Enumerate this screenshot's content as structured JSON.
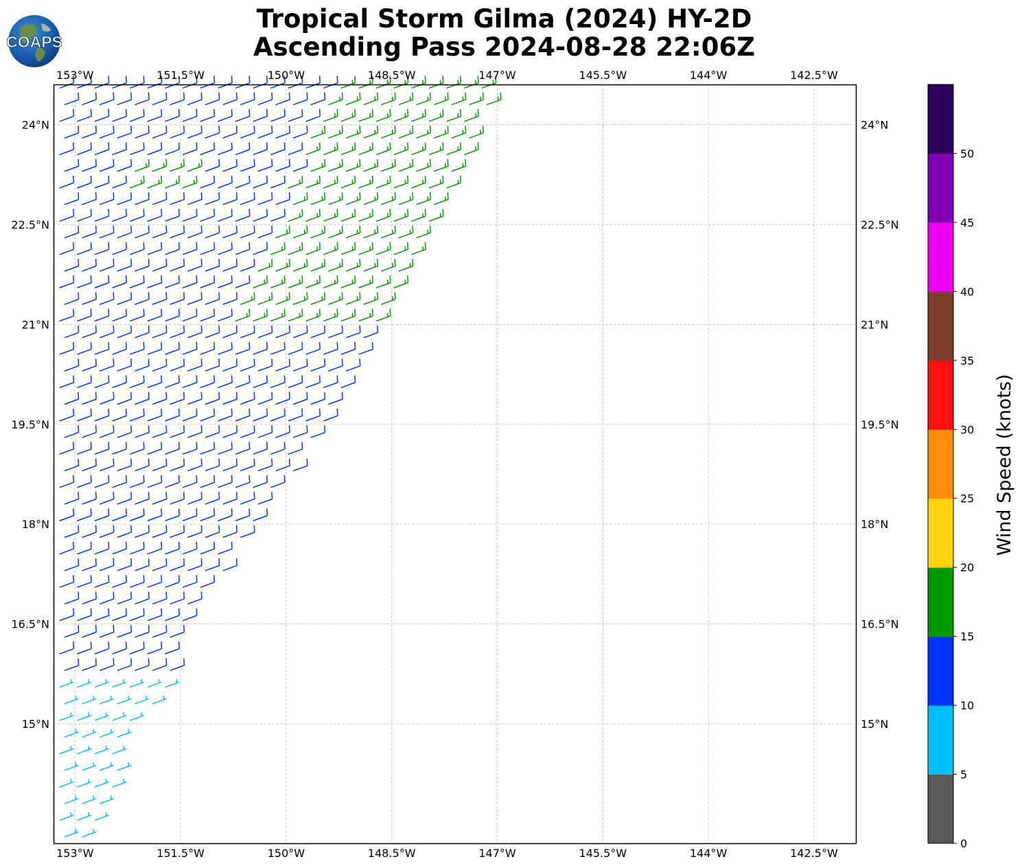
{
  "title": {
    "line1": "Tropical Storm Gilma (2024) HY-2D",
    "line2": "Ascending Pass 2024-08-28 22:06Z"
  },
  "logo": {
    "text": "COAPS",
    "icon": "globe-icon"
  },
  "map": {
    "lon_range": [
      -153.3,
      -141.9
    ],
    "lat_range": [
      13.2,
      24.6
    ],
    "lon_ticks": [
      {
        "value": -153.0,
        "label": "153°W"
      },
      {
        "value": -151.5,
        "label": "151.5°W"
      },
      {
        "value": -150.0,
        "label": "150°W"
      },
      {
        "value": -148.5,
        "label": "148.5°W"
      },
      {
        "value": -147.0,
        "label": "147°W"
      },
      {
        "value": -145.5,
        "label": "145.5°W"
      },
      {
        "value": -144.0,
        "label": "144°W"
      },
      {
        "value": -142.5,
        "label": "142.5°W"
      }
    ],
    "lat_ticks": [
      {
        "value": 24.0,
        "label": "24°N"
      },
      {
        "value": 22.5,
        "label": "22.5°N"
      },
      {
        "value": 21.0,
        "label": "21°N"
      },
      {
        "value": 19.5,
        "label": "19.5°N"
      },
      {
        "value": 18.0,
        "label": "18°N"
      },
      {
        "value": 16.5,
        "label": "16.5°N"
      },
      {
        "value": 15.0,
        "label": "15°N"
      }
    ],
    "grid": true,
    "swath": {
      "west_lon": -153.3,
      "east_edge": [
        {
          "lat": 24.6,
          "lon": -147.0
        },
        {
          "lat": 21.0,
          "lon": -148.6
        },
        {
          "lat": 18.8,
          "lon": -149.9
        },
        {
          "lat": 16.7,
          "lon": -151.3
        },
        {
          "lat": 15.3,
          "lon": -151.8
        },
        {
          "lat": 14.6,
          "lon": -152.3
        },
        {
          "lat": 13.2,
          "lon": -152.7
        }
      ],
      "spacing_deg": 0.25,
      "wind_direction_deg": 70
    }
  },
  "chart_data": {
    "type": "scatter",
    "description_units": "wind barbs; speed in knots",
    "ylabel": "Wind Speed (knots)",
    "colorbar": {
      "label": "Wind Speed (knots)",
      "ticks": [
        0,
        5,
        10,
        15,
        20,
        25,
        30,
        35,
        40,
        45,
        50
      ],
      "max": 55,
      "bins": [
        {
          "min": 0,
          "max": 5,
          "color": "#595959"
        },
        {
          "min": 5,
          "max": 10,
          "color": "#00bfff"
        },
        {
          "min": 10,
          "max": 15,
          "color": "#0033ff"
        },
        {
          "min": 15,
          "max": 20,
          "color": "#009900"
        },
        {
          "min": 20,
          "max": 25,
          "color": "#ffd40f"
        },
        {
          "min": 25,
          "max": 30,
          "color": "#ff8c0a"
        },
        {
          "min": 30,
          "max": 35,
          "color": "#ff1010"
        },
        {
          "min": 35,
          "max": 40,
          "color": "#7f3f2d"
        },
        {
          "min": 40,
          "max": 45,
          "color": "#f000f0"
        },
        {
          "min": 45,
          "max": 50,
          "color": "#8000b8"
        },
        {
          "min": 50,
          "max": 55,
          "color": "#2c005c"
        }
      ]
    },
    "wind_zones": [
      {
        "region": "lat < 15.6",
        "speed_kt": 7,
        "color": "#00bfff"
      },
      {
        "region": "15.6 ≤ lat < 21",
        "speed_kt": 12,
        "color": "#0033ff"
      },
      {
        "region": "lat ≥ 21, eastern swath",
        "speed_kt": 17,
        "color": "#009900"
      },
      {
        "region": "lat ≥ 21, western swath",
        "speed_kt": 13,
        "color": "#0033ff"
      }
    ]
  }
}
